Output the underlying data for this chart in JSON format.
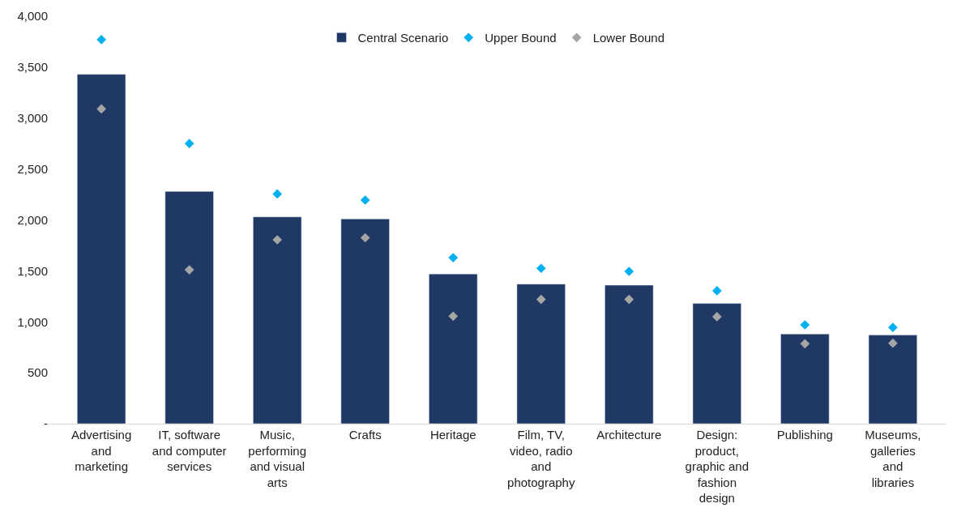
{
  "chart_data": {
    "type": "bar",
    "categories": [
      "Advertising and marketing",
      "IT, software and computer services",
      "Music, performing and visual arts",
      "Crafts",
      "Heritage",
      "Film, TV, video, radio and photography",
      "Architecture",
      "Design: product, graphic and fashion design",
      "Publishing",
      "Museums, galleries and libraries"
    ],
    "series": [
      {
        "name": "Central Scenario",
        "color": "#1f3864",
        "values": [
          3430,
          2280,
          2030,
          2010,
          1470,
          1370,
          1360,
          1180,
          880,
          870
        ]
      },
      {
        "name": "Upper Bound",
        "type": "scatter",
        "color": "#00b0f0",
        "marker": "diamond",
        "values": [
          3770,
          2750,
          2255,
          2195,
          1630,
          1525,
          1495,
          1305,
          970,
          945
        ]
      },
      {
        "name": "Lower Bound",
        "type": "scatter",
        "color": "#a5a5a5",
        "marker": "diamond",
        "values": [
          3090,
          1510,
          1805,
          1825,
          1055,
          1220,
          1220,
          1050,
          785,
          790
        ]
      }
    ],
    "ylim": [
      0,
      4000
    ],
    "yticks": [
      {
        "value": 0,
        "label": "-"
      },
      {
        "value": 500,
        "label": "500"
      },
      {
        "value": 1000,
        "label": "1,000"
      },
      {
        "value": 1500,
        "label": "1,500"
      },
      {
        "value": 2000,
        "label": "2,000"
      },
      {
        "value": 2500,
        "label": "2,500"
      },
      {
        "value": 3000,
        "label": "3,000"
      },
      {
        "value": 3500,
        "label": "3,500"
      },
      {
        "value": 4000,
        "label": "4,000"
      }
    ],
    "legend": "top"
  }
}
